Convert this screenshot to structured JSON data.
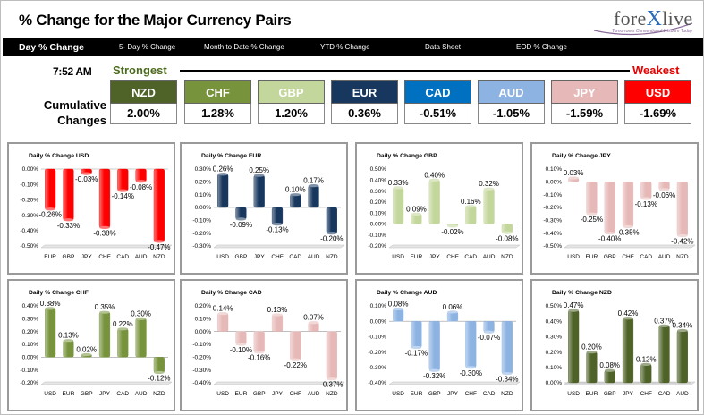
{
  "header": {
    "title": "% Change for the Major Currency Pairs"
  },
  "logo": {
    "name": "forexlive",
    "tagline": "Tomorrow's Conventional Wisdom Today"
  },
  "tabs": [
    {
      "label": "Day % Change",
      "active": true
    },
    {
      "label": "5- Day % Change",
      "active": false
    },
    {
      "label": "Month to Date % Change",
      "active": false
    },
    {
      "label": "YTD % Change",
      "active": false
    },
    {
      "label": "Data Sheet",
      "active": false
    },
    {
      "label": "EOD % Change",
      "active": false
    }
  ],
  "summary": {
    "time": "7:52 AM",
    "strongest_label": "Strongest",
    "weakest_label": "Weakest",
    "cumulative_label_1": "Cumulative",
    "cumulative_label_2": "Changes",
    "currencies": [
      {
        "code": "NZD",
        "value": "2.00%",
        "color": "#4f6228"
      },
      {
        "code": "CHF",
        "value": "1.28%",
        "color": "#77933c"
      },
      {
        "code": "GBP",
        "value": "1.20%",
        "color": "#c3d69b"
      },
      {
        "code": "EUR",
        "value": "0.36%",
        "color": "#17375e"
      },
      {
        "code": "CAD",
        "value": "-0.51%",
        "color": "#0070c0"
      },
      {
        "code": "AUD",
        "value": "-1.05%",
        "color": "#8db3e2"
      },
      {
        "code": "JPY",
        "value": "-1.59%",
        "color": "#e6b9b8"
      },
      {
        "code": "USD",
        "value": "-1.69%",
        "color": "#ff0000"
      }
    ]
  },
  "chart_data": [
    {
      "type": "bar",
      "title": "Daily % Change USD",
      "color": "#ff0000",
      "categories": [
        "EUR",
        "GBP",
        "JPY",
        "CHF",
        "CAD",
        "AUD",
        "NZD"
      ],
      "values": [
        -0.26,
        -0.33,
        -0.03,
        -0.38,
        -0.14,
        -0.08,
        -0.47
      ],
      "labels": [
        "-0.26%",
        "-0.33%",
        "-0.03%",
        "-0.38%",
        "-0.14%",
        "-0.08%",
        "-0.47%"
      ],
      "ylim": [
        -0.5,
        0
      ],
      "ticks": [
        "0.00%",
        "-0.10%",
        "-0.20%",
        "-0.30%",
        "-0.40%",
        "-0.50%"
      ]
    },
    {
      "type": "bar",
      "title": "Daily % Change EUR",
      "color": "#17375e",
      "categories": [
        "USD",
        "GBP",
        "JPY",
        "CHF",
        "CAD",
        "AUD",
        "NZD"
      ],
      "values": [
        0.26,
        -0.09,
        0.25,
        -0.13,
        0.1,
        0.17,
        -0.2
      ],
      "labels": [
        "0.26%",
        "-0.09%",
        "0.25%",
        "-0.13%",
        "0.10%",
        "0.17%",
        "-0.20%"
      ],
      "ylim": [
        -0.3,
        0.3
      ],
      "ticks": [
        "0.30%",
        "0.20%",
        "0.10%",
        "0.00%",
        "-0.10%",
        "-0.20%",
        "-0.30%"
      ]
    },
    {
      "type": "bar",
      "title": "Daily % Change GBP",
      "color": "#c3d69b",
      "categories": [
        "USD",
        "EUR",
        "JPY",
        "CHF",
        "CAD",
        "AUD",
        "NZD"
      ],
      "values": [
        0.33,
        0.09,
        0.4,
        -0.02,
        0.16,
        0.32,
        -0.08
      ],
      "labels": [
        "0.33%",
        "0.09%",
        "0.40%",
        "-0.02%",
        "0.16%",
        "0.32%",
        "-0.08%"
      ],
      "ylim": [
        -0.2,
        0.5
      ],
      "ticks": [
        "0.50%",
        "0.40%",
        "0.30%",
        "0.20%",
        "0.10%",
        "0.00%",
        "-0.10%",
        "-0.20%"
      ]
    },
    {
      "type": "bar",
      "title": "Daily % Change JPY",
      "color": "#e6b9b8",
      "categories": [
        "USD",
        "EUR",
        "GBP",
        "CHF",
        "CAD",
        "AUD",
        "NZD"
      ],
      "values": [
        0.03,
        -0.25,
        -0.4,
        -0.35,
        -0.13,
        -0.06,
        -0.42
      ],
      "labels": [
        "0.03%",
        "-0.25%",
        "-0.40%",
        "-0.35%",
        "-0.13%",
        "-0.06%",
        "-0.42%"
      ],
      "ylim": [
        -0.5,
        0.1
      ],
      "ticks": [
        "0.10%",
        "0.00%",
        "-0.10%",
        "-0.20%",
        "-0.30%",
        "-0.40%",
        "-0.50%"
      ]
    },
    {
      "type": "bar",
      "title": "Daily % Change CHF",
      "color": "#77933c",
      "categories": [
        "USD",
        "EUR",
        "GBP",
        "JPY",
        "CAD",
        "AUD",
        "NZD"
      ],
      "values": [
        0.38,
        0.13,
        0.02,
        0.35,
        0.22,
        0.3,
        -0.12
      ],
      "labels": [
        "0.38%",
        "0.13%",
        "0.02%",
        "0.35%",
        "0.22%",
        "0.30%",
        "-0.12%"
      ],
      "ylim": [
        -0.2,
        0.4
      ],
      "ticks": [
        "0.40%",
        "0.30%",
        "0.20%",
        "0.10%",
        "0.00%",
        "-0.10%",
        "-0.20%"
      ]
    },
    {
      "type": "bar",
      "title": "Daily % Change CAD",
      "color": "#e6b9b8",
      "categories": [
        "USD",
        "EUR",
        "GBP",
        "JPY",
        "CHF",
        "AUD",
        "NZD"
      ],
      "values": [
        0.14,
        -0.1,
        -0.16,
        0.13,
        -0.22,
        0.07,
        -0.37
      ],
      "labels": [
        "0.14%",
        "-0.10%",
        "-0.16%",
        "0.13%",
        "-0.22%",
        "0.07%",
        "-0.37%"
      ],
      "ylim": [
        -0.4,
        0.2
      ],
      "ticks": [
        "0.20%",
        "0.10%",
        "0.00%",
        "-0.10%",
        "-0.20%",
        "-0.30%",
        "-0.40%"
      ]
    },
    {
      "type": "bar",
      "title": "Daily % Change AUD",
      "color": "#8db3e2",
      "categories": [
        "USD",
        "EUR",
        "GBP",
        "JPY",
        "CHF",
        "CAD",
        "NZD"
      ],
      "values": [
        0.08,
        -0.17,
        -0.32,
        0.06,
        -0.3,
        -0.07,
        -0.34
      ],
      "labels": [
        "0.08%",
        "-0.17%",
        "-0.32%",
        "0.06%",
        "-0.30%",
        "-0.07%",
        "-0.34%"
      ],
      "ylim": [
        -0.4,
        0.1
      ],
      "ticks": [
        "0.10%",
        "0.00%",
        "-0.10%",
        "-0.20%",
        "-0.30%",
        "-0.40%"
      ]
    },
    {
      "type": "bar",
      "title": "Daily % Change NZD",
      "color": "#4f6228",
      "categories": [
        "USD",
        "EUR",
        "GBP",
        "JPY",
        "CHF",
        "CAD",
        "AUD"
      ],
      "values": [
        0.47,
        0.2,
        0.08,
        0.42,
        0.12,
        0.37,
        0.34
      ],
      "labels": [
        "0.47%",
        "0.20%",
        "0.08%",
        "0.42%",
        "0.12%",
        "0.37%",
        "0.34%"
      ],
      "ylim": [
        0,
        0.5
      ],
      "ticks": [
        "0.50%",
        "0.40%",
        "0.30%",
        "0.20%",
        "0.10%",
        "0.00%"
      ]
    }
  ]
}
